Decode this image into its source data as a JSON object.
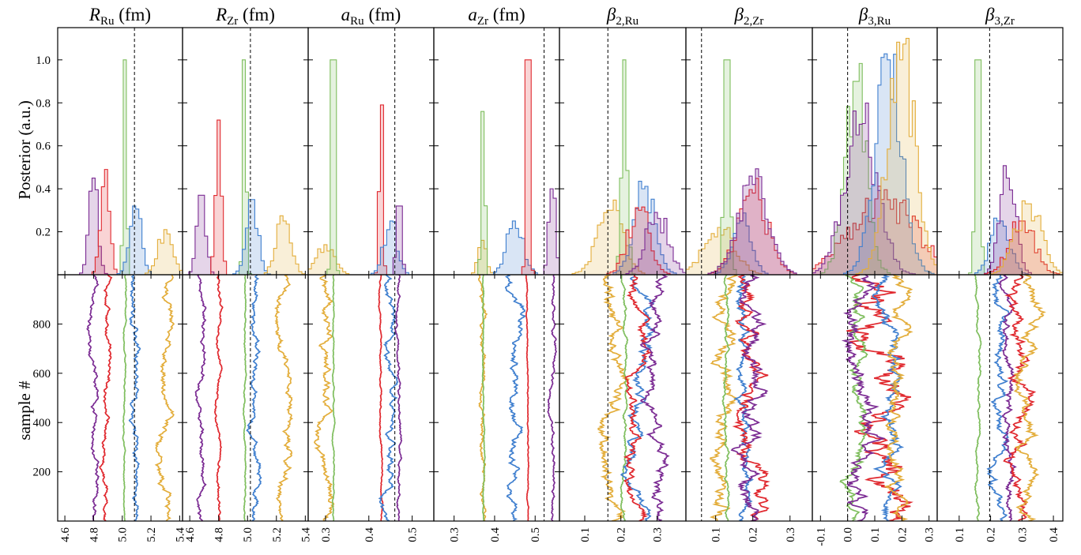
{
  "figure": {
    "ylabel_top": "Posterior (a.u.)",
    "ylabel_bottom": "sample #",
    "top_yticks": [
      "0.2",
      "0.4",
      "0.6",
      "0.8",
      "1.0"
    ],
    "bottom_yticks": [
      "200",
      "400",
      "600",
      "800"
    ],
    "colors": {
      "green": "#7fbe5e",
      "red": "#e0282e",
      "blue": "#3f7fcf",
      "purple": "#7b2b93",
      "orange": "#e3ad3a"
    }
  },
  "chart_data": [
    {
      "type": "histogram+trace",
      "title": {
        "base": "R",
        "sub": "Ru",
        "unit": " (fm)"
      },
      "xticks": [
        "4.6",
        "4.8",
        "5.0",
        "5.2",
        "5.4"
      ],
      "xlim": [
        4.55,
        5.42
      ],
      "true_value": 5.085,
      "ylim_top": [
        0,
        1.15
      ],
      "ylim_bottom": [
        0,
        1000
      ],
      "series": [
        {
          "color": "purple",
          "center": 4.8,
          "width": 0.03,
          "peak": 0.45
        },
        {
          "color": "red",
          "center": 4.88,
          "width": 0.03,
          "peak": 0.49
        },
        {
          "color": "green",
          "center": 5.02,
          "width": 0.01,
          "peak": 1.0
        },
        {
          "color": "blue",
          "center": 5.09,
          "width": 0.04,
          "peak": 0.32
        },
        {
          "color": "orange",
          "center": 5.3,
          "width": 0.05,
          "peak": 0.21
        }
      ]
    },
    {
      "type": "histogram+trace",
      "title": {
        "base": "R",
        "sub": "Zr",
        "unit": " (fm)"
      },
      "xticks": [
        "4.6",
        "4.8",
        "5.0",
        "5.2",
        "5.4"
      ],
      "xlim": [
        4.55,
        5.42
      ],
      "true_value": 5.02,
      "ylim_top": [
        0,
        1.15
      ],
      "ylim_bottom": [
        0,
        1000
      ],
      "series": [
        {
          "color": "purple",
          "center": 4.68,
          "width": 0.03,
          "peak": 0.37
        },
        {
          "color": "red",
          "center": 4.8,
          "width": 0.02,
          "peak": 0.72
        },
        {
          "color": "green",
          "center": 4.98,
          "width": 0.01,
          "peak": 1.0
        },
        {
          "color": "blue",
          "center": 5.03,
          "width": 0.04,
          "peak": 0.35
        },
        {
          "color": "orange",
          "center": 5.25,
          "width": 0.05,
          "peak": 0.25
        }
      ]
    },
    {
      "type": "histogram+trace",
      "title": {
        "base": "a",
        "sub": "Ru",
        "unit": " (fm)"
      },
      "xticks": [
        "0.3",
        "0.4",
        "0.5"
      ],
      "xlim": [
        0.26,
        0.55
      ],
      "true_value": 0.46,
      "ylim_top": [
        0,
        1.15
      ],
      "ylim_bottom": [
        0,
        1000
      ],
      "series": [
        {
          "color": "orange",
          "center": 0.3,
          "width": 0.02,
          "peak": 0.14
        },
        {
          "color": "green",
          "center": 0.318,
          "width": 0.003,
          "peak": 1.0
        },
        {
          "color": "red",
          "center": 0.428,
          "width": 0.004,
          "peak": 0.79
        },
        {
          "color": "blue",
          "center": 0.45,
          "width": 0.015,
          "peak": 0.25
        },
        {
          "color": "purple",
          "center": 0.47,
          "width": 0.006,
          "peak": 0.32
        }
      ]
    },
    {
      "type": "histogram+trace",
      "title": {
        "base": "a",
        "sub": "Zr",
        "unit": " (fm)"
      },
      "xticks": [
        "0.3",
        "0.4",
        "0.5"
      ],
      "xlim": [
        0.25,
        0.56
      ],
      "true_value": 0.522,
      "ylim_top": [
        0,
        1.15
      ],
      "ylim_bottom": [
        0,
        1000
      ],
      "series": [
        {
          "color": "orange",
          "center": 0.37,
          "width": 0.01,
          "peak": 0.16
        },
        {
          "color": "green",
          "center": 0.372,
          "width": 0.003,
          "peak": 0.76
        },
        {
          "color": "blue",
          "center": 0.45,
          "width": 0.02,
          "peak": 0.25
        },
        {
          "color": "red",
          "center": 0.482,
          "width": 0.003,
          "peak": 1.0
        },
        {
          "color": "purple",
          "center": 0.542,
          "width": 0.008,
          "peak": 0.4
        }
      ]
    },
    {
      "type": "histogram+trace",
      "title": {
        "base": "β",
        "sub": "2,Ru",
        "unit": ""
      },
      "xticks": [
        "0.1",
        "0.2",
        "0.3"
      ],
      "xlim": [
        0.03,
        0.38
      ],
      "true_value": 0.164,
      "ylim_top": [
        0,
        1.15
      ],
      "ylim_bottom": [
        0,
        1000
      ],
      "series": [
        {
          "color": "orange",
          "center": 0.17,
          "width": 0.035,
          "peak": 0.3
        },
        {
          "color": "green",
          "center": 0.21,
          "width": 0.008,
          "peak": 1.0
        },
        {
          "color": "blue",
          "center": 0.265,
          "width": 0.03,
          "peak": 0.4
        },
        {
          "color": "red",
          "center": 0.25,
          "width": 0.03,
          "peak": 0.3
        },
        {
          "color": "purple",
          "center": 0.3,
          "width": 0.03,
          "peak": 0.29
        }
      ]
    },
    {
      "type": "histogram+trace",
      "title": {
        "base": "β",
        "sub": "2,Zr",
        "unit": ""
      },
      "xticks": [
        "0.1",
        "0.2",
        "0.3"
      ],
      "xlim": [
        0.02,
        0.36
      ],
      "true_value": 0.062,
      "ylim_top": [
        0,
        1.15
      ],
      "ylim_bottom": [
        0,
        1000
      ],
      "series": [
        {
          "color": "orange",
          "center": 0.11,
          "width": 0.04,
          "peak": 0.22
        },
        {
          "color": "green",
          "center": 0.13,
          "width": 0.008,
          "peak": 1.0
        },
        {
          "color": "blue",
          "center": 0.17,
          "width": 0.025,
          "peak": 0.25
        },
        {
          "color": "red",
          "center": 0.2,
          "width": 0.04,
          "peak": 0.38
        },
        {
          "color": "purple",
          "center": 0.2,
          "width": 0.04,
          "peak": 0.42
        }
      ]
    },
    {
      "type": "histogram+trace",
      "title": {
        "base": "β",
        "sub": "3,Ru",
        "unit": ""
      },
      "xticks": [
        "-0.1",
        "0.0",
        "0.1",
        "0.2",
        "0.3"
      ],
      "xlim": [
        -0.13,
        0.33
      ],
      "true_value": 0.0,
      "ylim_top": [
        0,
        1.15
      ],
      "ylim_bottom": [
        0,
        1000
      ],
      "series": [
        {
          "color": "red",
          "center": 0.13,
          "width": 0.12,
          "peak": 0.35
        },
        {
          "color": "green",
          "center": 0.03,
          "width": 0.04,
          "peak": 0.9
        },
        {
          "color": "purple",
          "center": 0.05,
          "width": 0.06,
          "peak": 0.7
        },
        {
          "color": "blue",
          "center": 0.15,
          "width": 0.05,
          "peak": 1.0
        },
        {
          "color": "orange",
          "center": 0.2,
          "width": 0.05,
          "peak": 1.0
        }
      ]
    },
    {
      "type": "histogram+trace",
      "title": {
        "base": "β",
        "sub": "3,Zr",
        "unit": ""
      },
      "xticks": [
        "0.1",
        "0.2",
        "0.3",
        "0.4"
      ],
      "xlim": [
        0.03,
        0.43
      ],
      "true_value": 0.197,
      "ylim_top": [
        0,
        1.15
      ],
      "ylim_bottom": [
        0,
        1000
      ],
      "series": [
        {
          "color": "green",
          "center": 0.16,
          "width": 0.008,
          "peak": 1.0
        },
        {
          "color": "blue",
          "center": 0.23,
          "width": 0.03,
          "peak": 0.25
        },
        {
          "color": "purple",
          "center": 0.255,
          "width": 0.025,
          "peak": 0.45
        },
        {
          "color": "red",
          "center": 0.3,
          "width": 0.04,
          "peak": 0.25
        },
        {
          "color": "orange",
          "center": 0.32,
          "width": 0.04,
          "peak": 0.33
        }
      ]
    }
  ]
}
